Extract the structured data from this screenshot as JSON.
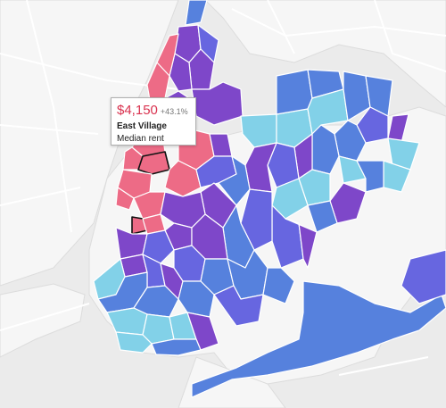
{
  "tooltip": {
    "price": "$4,150",
    "change": "+43.1%",
    "neighborhood": "East Village",
    "metric": "Median rent"
  },
  "colors": {
    "background": "#eeeeee",
    "land": "#f7f7f7",
    "road": "#ffffff",
    "highest": "#ed6b86",
    "high": "#7e47c9",
    "mid_high": "#6766e0",
    "mid": "#5681dd",
    "low": "#82d1e8",
    "selected_outline": "#111111",
    "price_text": "#d9324f"
  },
  "legend_note": "Choropleth of neighborhoods colored by median rent tier"
}
